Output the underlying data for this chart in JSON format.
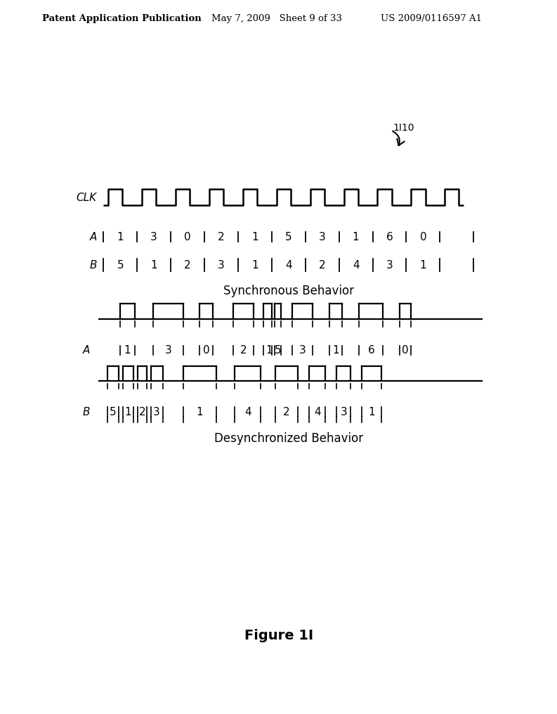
{
  "header_left": "Patent Application Publication",
  "header_mid": "May 7, 2009   Sheet 9 of 33",
  "header_right": "US 2009/0116597 A1",
  "figure_label": "Figure 1I",
  "fig_number": "1I10",
  "sync_label": "Synchronous Behavior",
  "desync_label": "Desynchronized Behavior",
  "clk_label": "CLK",
  "A_label": "A",
  "B_label": "B",
  "sync_A_values": [
    "1",
    "3",
    "0",
    "2",
    "1",
    "5",
    "3",
    "1",
    "6",
    "0"
  ],
  "sync_B_values": [
    "5",
    "1",
    "2",
    "3",
    "1",
    "4",
    "2",
    "4",
    "3",
    "1"
  ],
  "desync_A_values": [
    "1",
    "3",
    "0",
    "2",
    "1",
    "5",
    "3",
    "1",
    "6",
    "0"
  ],
  "desync_B_values": [
    "5",
    "1",
    "2",
    "3",
    "1",
    "4",
    "2",
    "4",
    "3",
    "1"
  ],
  "bg_color": "#ffffff",
  "line_color": "#000000",
  "text_color": "#000000"
}
